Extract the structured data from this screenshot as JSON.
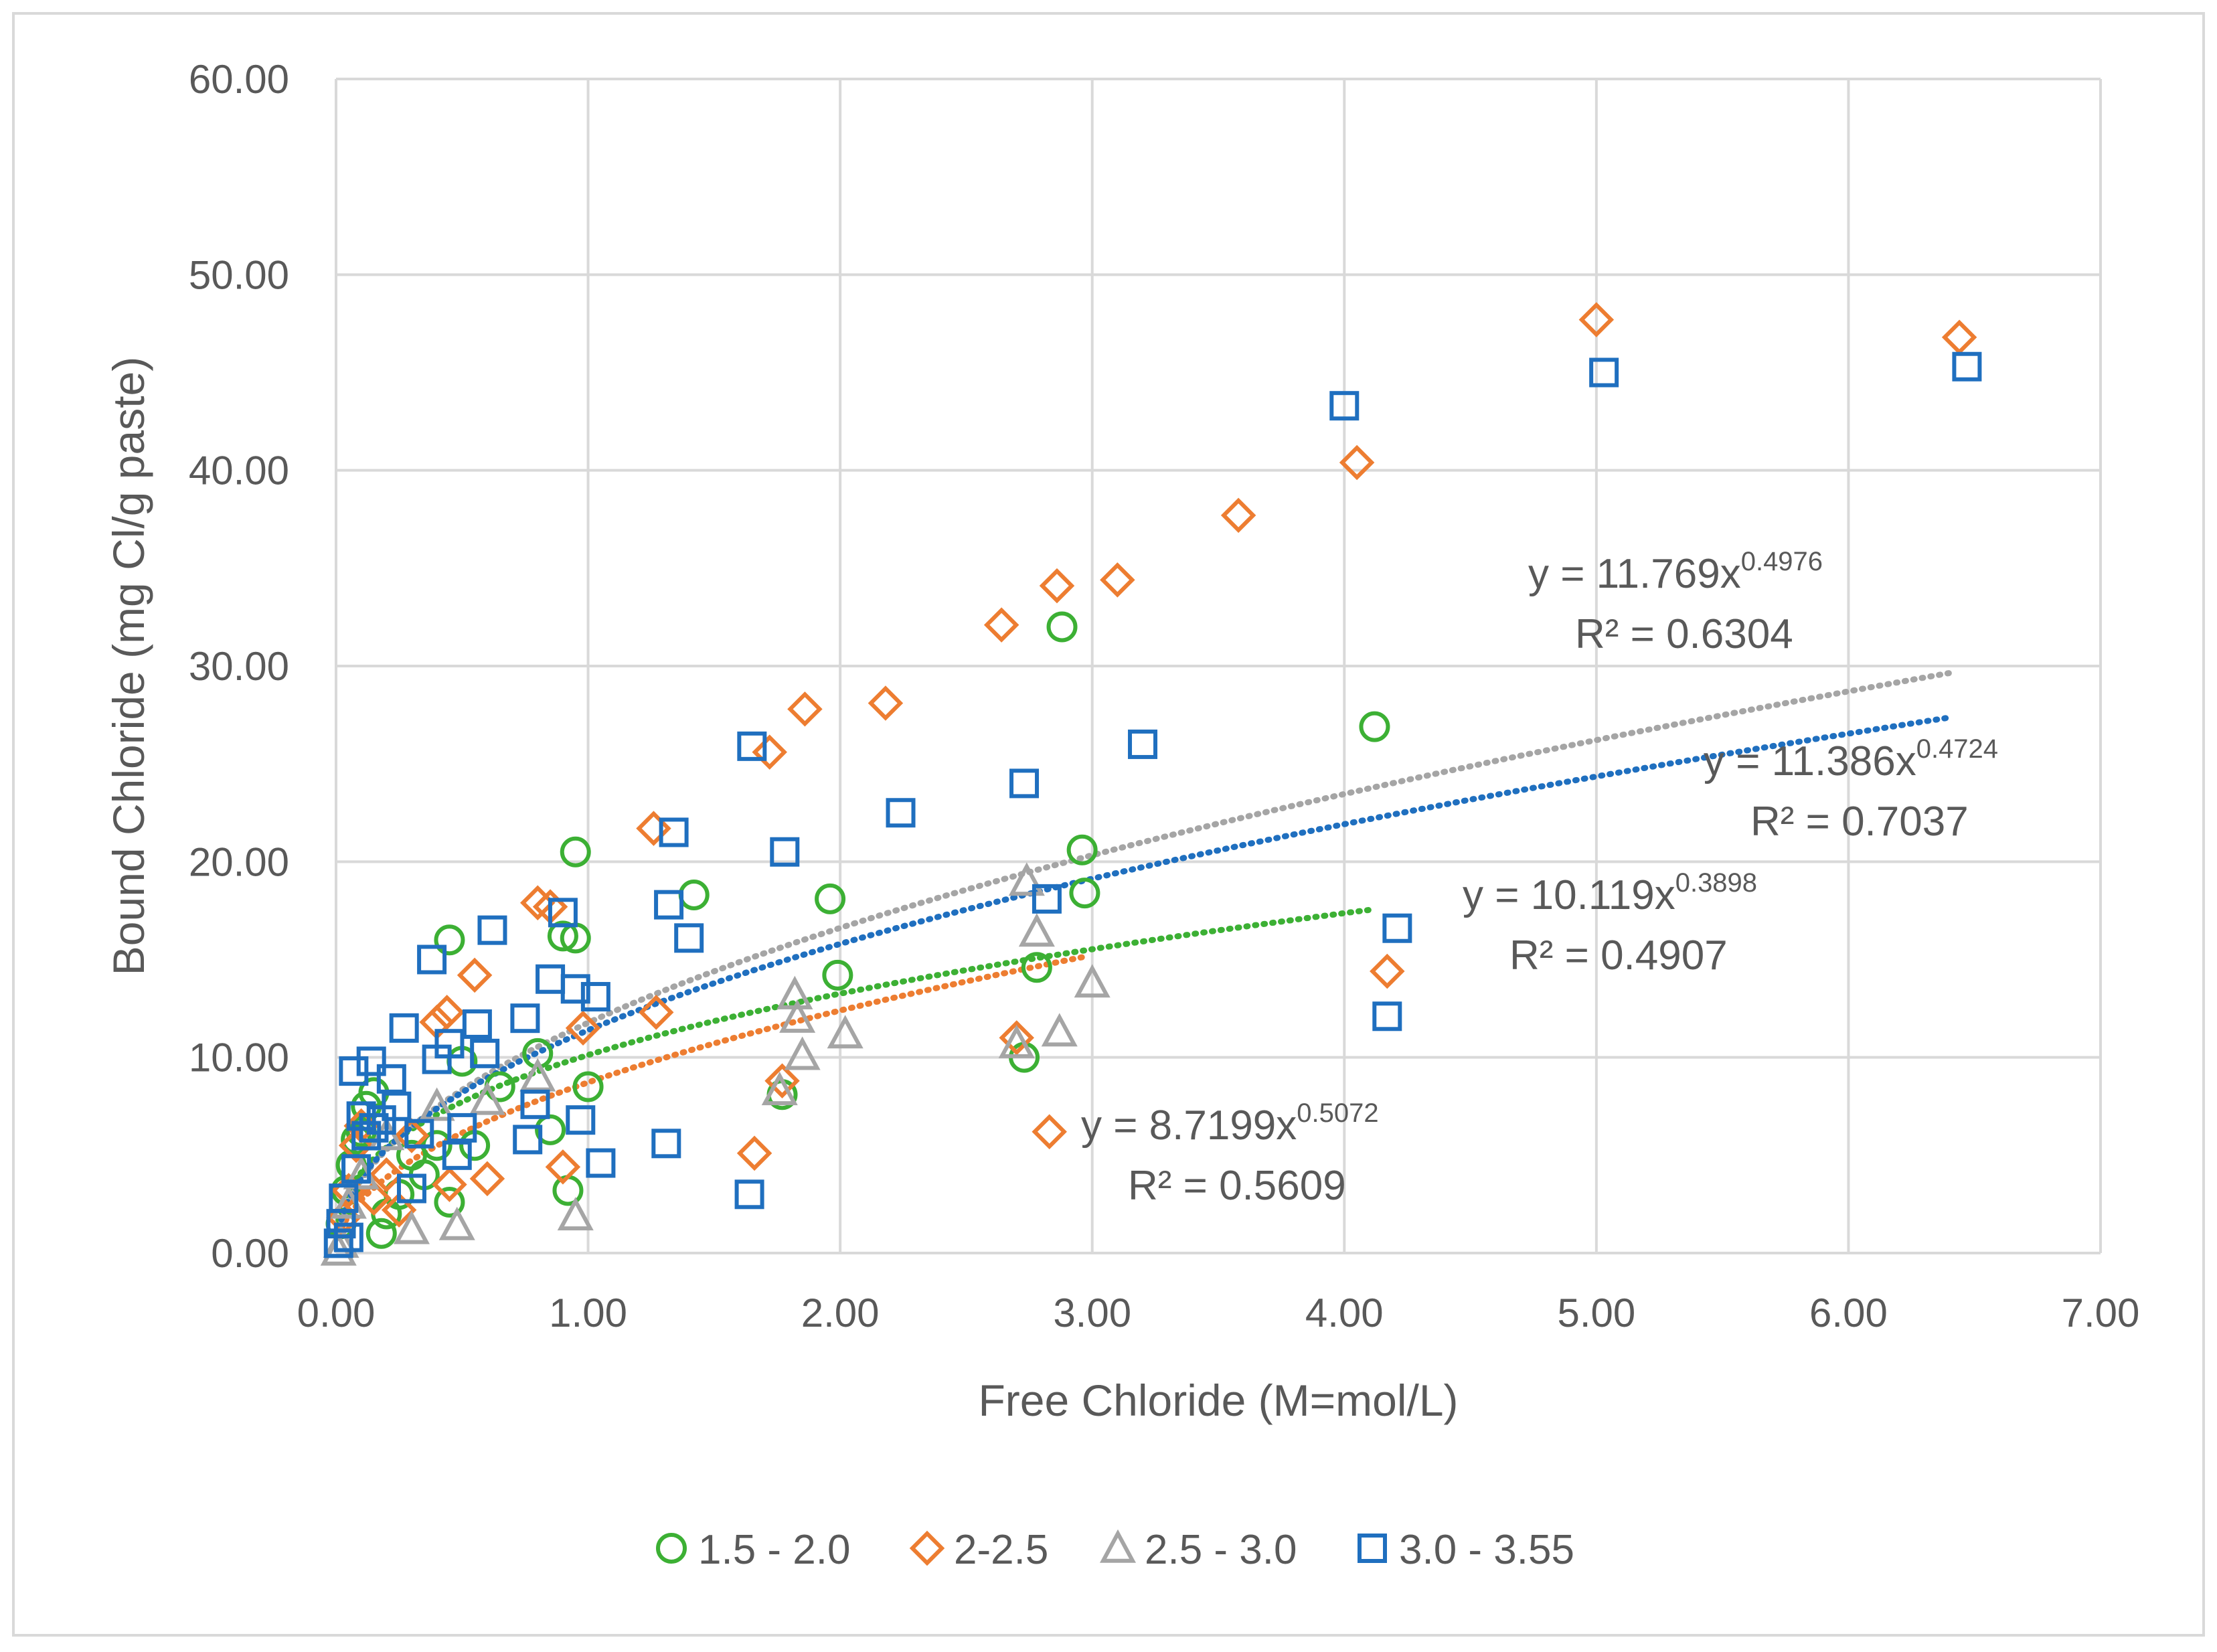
{
  "chart_data": {
    "type": "scatter",
    "title": "",
    "xlabel": "Free Chloride (M=mol/L)",
    "ylabel": "Bound Chloride (mg Cl/g paste)",
    "xlim": [
      0,
      7
    ],
    "ylim": [
      0,
      60
    ],
    "x_ticks": [
      0,
      1,
      2,
      3,
      4,
      5,
      6,
      7
    ],
    "y_ticks": [
      0,
      10,
      20,
      30,
      40,
      50,
      60
    ],
    "x_tick_labels": [
      "0.00",
      "1.00",
      "2.00",
      "3.00",
      "4.00",
      "5.00",
      "6.00",
      "7.00"
    ],
    "y_tick_labels": [
      "0.00",
      "10.00",
      "20.00",
      "30.00",
      "40.00",
      "50.00",
      "60.00"
    ],
    "grid": true,
    "legend_position": "bottom",
    "series": [
      {
        "name": "1.5 - 2.0",
        "marker": "circle",
        "color": "#3cb034",
        "trend": {
          "a": 10.119,
          "b": 0.3898,
          "xmax": 4.12,
          "equation_prefix": "y = 10.119x",
          "exponent": "0.3898",
          "r2": "R² = 0.4907"
        },
        "points": [
          [
            0.02,
            1.5
          ],
          [
            0.04,
            3.2
          ],
          [
            0.06,
            4.5
          ],
          [
            0.08,
            5.8
          ],
          [
            0.1,
            6.2
          ],
          [
            0.12,
            7.5
          ],
          [
            0.15,
            8.2
          ],
          [
            0.18,
            1.0
          ],
          [
            0.2,
            2.0
          ],
          [
            0.25,
            3.0
          ],
          [
            0.3,
            5.0
          ],
          [
            0.35,
            4.0
          ],
          [
            0.4,
            5.5
          ],
          [
            0.45,
            16.0
          ],
          [
            0.45,
            2.6
          ],
          [
            0.5,
            9.8
          ],
          [
            0.55,
            5.5
          ],
          [
            0.65,
            8.5
          ],
          [
            0.8,
            10.2
          ],
          [
            0.85,
            6.3
          ],
          [
            0.9,
            16.2
          ],
          [
            0.92,
            3.2
          ],
          [
            0.95,
            20.5
          ],
          [
            0.95,
            16.1
          ],
          [
            1.0,
            8.5
          ],
          [
            1.42,
            18.3
          ],
          [
            1.77,
            8.1
          ],
          [
            1.96,
            18.1
          ],
          [
            1.99,
            14.2
          ],
          [
            2.73,
            10.0
          ],
          [
            2.78,
            14.6
          ],
          [
            2.88,
            32.0
          ],
          [
            2.96,
            20.6
          ],
          [
            2.97,
            18.4
          ],
          [
            4.12,
            26.9
          ]
        ]
      },
      {
        "name": "2-2.5",
        "marker": "diamond",
        "color": "#ed7d31",
        "trend": {
          "a": 8.7199,
          "b": 0.5072,
          "xmax": 2.98,
          "equation_prefix": "y = 8.7199x",
          "exponent": "0.5072",
          "r2": "R² = 0.5609"
        },
        "points": [
          [
            0.03,
            1.8
          ],
          [
            0.05,
            3.2
          ],
          [
            0.08,
            5.5
          ],
          [
            0.1,
            6.5
          ],
          [
            0.15,
            2.8
          ],
          [
            0.2,
            4.0
          ],
          [
            0.25,
            2.2
          ],
          [
            0.3,
            6.0
          ],
          [
            0.4,
            11.8
          ],
          [
            0.44,
            12.3
          ],
          [
            0.45,
            3.5
          ],
          [
            0.55,
            14.2
          ],
          [
            0.6,
            3.8
          ],
          [
            0.8,
            17.9
          ],
          [
            0.85,
            17.7
          ],
          [
            0.9,
            4.4
          ],
          [
            0.98,
            11.5
          ],
          [
            1.26,
            21.7
          ],
          [
            1.27,
            12.3
          ],
          [
            1.66,
            5.1
          ],
          [
            1.72,
            25.6
          ],
          [
            1.77,
            8.8
          ],
          [
            1.86,
            27.8
          ],
          [
            2.18,
            28.1
          ],
          [
            2.64,
            32.1
          ],
          [
            2.7,
            11.0
          ],
          [
            2.83,
            6.2
          ],
          [
            2.86,
            34.1
          ],
          [
            3.1,
            34.4
          ],
          [
            3.58,
            37.7
          ],
          [
            4.05,
            40.4
          ],
          [
            4.17,
            14.4
          ],
          [
            5.0,
            47.7
          ],
          [
            6.44,
            46.8
          ]
        ]
      },
      {
        "name": "2.5 - 3.0",
        "marker": "triangle",
        "color": "#a5a5a5",
        "trend": {
          "a": 11.769,
          "b": 0.4976,
          "xmax": 6.4,
          "equation_prefix": "y = 11.769x",
          "exponent": "0.4976",
          "r2": "R² = 0.6304"
        },
        "points": [
          [
            0.01,
            0.1
          ],
          [
            0.02,
            0.5
          ],
          [
            0.05,
            2.5
          ],
          [
            0.1,
            4.0
          ],
          [
            0.2,
            6.0
          ],
          [
            0.3,
            1.2
          ],
          [
            0.4,
            7.5
          ],
          [
            0.48,
            1.4
          ],
          [
            0.6,
            7.8
          ],
          [
            0.8,
            9.0
          ],
          [
            0.95,
            1.9
          ],
          [
            1.76,
            8.3
          ],
          [
            1.82,
            13.2
          ],
          [
            1.83,
            12.0
          ],
          [
            1.85,
            10.1
          ],
          [
            2.02,
            11.2
          ],
          [
            2.7,
            10.7
          ],
          [
            2.74,
            19.0
          ],
          [
            2.78,
            16.4
          ],
          [
            2.87,
            11.3
          ],
          [
            3.0,
            13.8
          ]
        ]
      },
      {
        "name": "3.0 - 3.55",
        "marker": "square",
        "color": "#1f6fbf",
        "trend": {
          "a": 11.386,
          "b": 0.4724,
          "xmax": 6.4,
          "equation_prefix": "y = 11.386x",
          "exponent": "0.4724",
          "r2": "R² = 0.7037"
        },
        "points": [
          [
            0.01,
            0.5
          ],
          [
            0.02,
            1.5
          ],
          [
            0.03,
            2.8
          ],
          [
            0.05,
            0.8
          ],
          [
            0.07,
            9.3
          ],
          [
            0.08,
            4.3
          ],
          [
            0.1,
            7.0
          ],
          [
            0.12,
            6.0
          ],
          [
            0.14,
            9.8
          ],
          [
            0.15,
            6.4
          ],
          [
            0.18,
            6.8
          ],
          [
            0.22,
            8.9
          ],
          [
            0.24,
            7.5
          ],
          [
            0.27,
            11.5
          ],
          [
            0.3,
            3.3
          ],
          [
            0.33,
            6.1
          ],
          [
            0.38,
            15.0
          ],
          [
            0.4,
            9.9
          ],
          [
            0.45,
            10.7
          ],
          [
            0.48,
            5.0
          ],
          [
            0.5,
            6.4
          ],
          [
            0.56,
            11.7
          ],
          [
            0.59,
            10.2
          ],
          [
            0.62,
            16.5
          ],
          [
            0.75,
            12.0
          ],
          [
            0.76,
            5.8
          ],
          [
            0.79,
            7.6
          ],
          [
            0.85,
            14.0
          ],
          [
            0.9,
            17.4
          ],
          [
            0.95,
            13.5
          ],
          [
            0.97,
            6.8
          ],
          [
            1.03,
            13.1
          ],
          [
            1.05,
            4.6
          ],
          [
            1.31,
            5.6
          ],
          [
            1.32,
            17.8
          ],
          [
            1.34,
            21.5
          ],
          [
            1.4,
            16.1
          ],
          [
            1.64,
            3.0
          ],
          [
            1.65,
            25.9
          ],
          [
            1.78,
            20.5
          ],
          [
            2.24,
            22.5
          ],
          [
            2.73,
            24.0
          ],
          [
            2.82,
            18.1
          ],
          [
            3.2,
            26.0
          ],
          [
            4.0,
            43.3
          ],
          [
            4.17,
            12.1
          ],
          [
            4.21,
            16.6
          ],
          [
            5.03,
            45.0
          ],
          [
            6.47,
            45.3
          ]
        ]
      }
    ]
  }
}
